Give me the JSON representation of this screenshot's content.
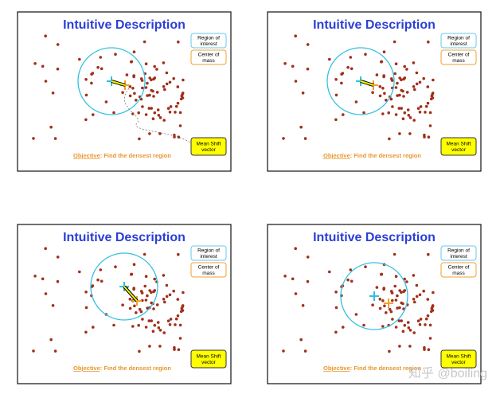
{
  "panels": [
    {
      "title": "Intuitive Description",
      "region_label": "Region of interest",
      "center_label": "Center of mass",
      "shift_label": "Mean Shift vector",
      "objective_label": "Objective",
      "objective_text": ": Find the densest region"
    },
    {
      "title": "Intuitive Description",
      "region_label": "Region of interest",
      "center_label": "Center of mass",
      "shift_label": "Mean Shift vector",
      "objective_label": "Objective",
      "objective_text": ": Find the densest region"
    },
    {
      "title": "Intuitive Description",
      "region_label": "Region of interest",
      "center_label": "Center of mass",
      "shift_label": "Mean Shift vector",
      "objective_label": "Objective",
      "objective_text": ": Find the densest region"
    },
    {
      "title": "Intuitive Description",
      "region_label": "Region of interest",
      "center_label": "Center of mass",
      "shift_label": "Mean Shift vector",
      "objective_label": "Objective",
      "objective_text": ": Find the densest region"
    }
  ],
  "watermark": "知乎 @boiling"
}
